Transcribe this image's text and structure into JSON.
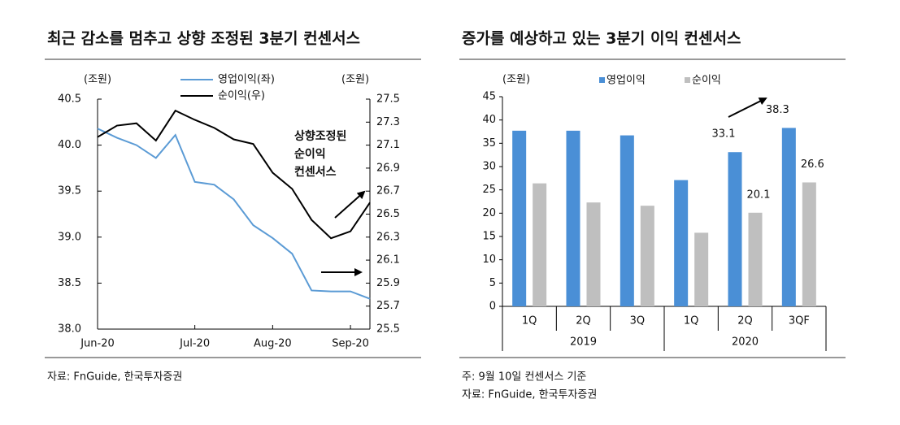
{
  "chart_data": [
    {
      "type": "line",
      "title": "최근 감소를 멈추고 상향 조정된 3분기 컨센서스",
      "y_label": "(조원)",
      "y2_label": "(조원)",
      "annotation": [
        "상향조정된",
        "순이익",
        "컨센서스"
      ],
      "source": "자료: FnGuide, 한국투자증권",
      "categories": [
        "Jun-20",
        null,
        null,
        null,
        null,
        "Jul-20",
        null,
        null,
        null,
        "Aug-20",
        null,
        null,
        null,
        "Sep-20",
        null
      ],
      "series": [
        {
          "name": "영업이익(좌)",
          "color": "#5b9bd5",
          "values": [
            40.18,
            40.08,
            40.0,
            39.86,
            40.11,
            39.6,
            39.57,
            39.41,
            39.13,
            38.99,
            38.82,
            38.42,
            38.41,
            38.41,
            38.33
          ]
        },
        {
          "name": "순이익(우)",
          "color": "#000000",
          "axis": "y2",
          "values": [
            27.17,
            27.27,
            27.29,
            27.14,
            27.4,
            27.32,
            27.25,
            27.15,
            27.11,
            26.86,
            26.72,
            26.45,
            26.29,
            26.35,
            26.6
          ]
        }
      ],
      "ylim": [
        38,
        40.5
      ],
      "yticks": [
        {
          "value": 38,
          "label": "38.0"
        },
        38.5,
        {
          "value": 39,
          "label": "39.0"
        },
        39.5,
        {
          "value": 40,
          "label": "40.0"
        },
        40.5
      ],
      "y2lim": [
        25.5,
        27.5
      ],
      "y2ticks": [
        25.5,
        25.7,
        25.9,
        26.1,
        26.3,
        26.5,
        26.7,
        26.9,
        27.1,
        27.3,
        27.5
      ],
      "grid": false
    },
    {
      "type": "bar",
      "title": "증가를 예상하고 있는 3분기 이익 컨센서스",
      "y_label": "(조원)",
      "note": "주: 9월 10일 컨센서스 기준",
      "source": "자료: FnGuide, 한국투자증권",
      "categories": [
        "1Q",
        "2Q",
        "3Q",
        "1Q",
        "2Q",
        "3QF"
      ],
      "groups": [
        {
          "label": "2019",
          "size": 3
        },
        {
          "label": "2020",
          "size": 3
        }
      ],
      "series": [
        {
          "name": "영업이익",
          "color": "#4a8fd6",
          "values": [
            37.7,
            37.7,
            36.7,
            27.1,
            33.1,
            38.3
          ],
          "value_labels": [
            null,
            null,
            null,
            null,
            "33.1",
            "38.3"
          ]
        },
        {
          "name": "순이익",
          "color": "#bfbfbf",
          "values": [
            26.4,
            22.3,
            21.6,
            15.8,
            20.1,
            26.6
          ],
          "value_labels": [
            null,
            null,
            null,
            null,
            "20.1",
            "26.6"
          ]
        }
      ],
      "ylim": [
        0,
        45
      ],
      "yticks": [
        0,
        5,
        10,
        15,
        20,
        25,
        30,
        35,
        40,
        45
      ],
      "grid": false
    }
  ]
}
